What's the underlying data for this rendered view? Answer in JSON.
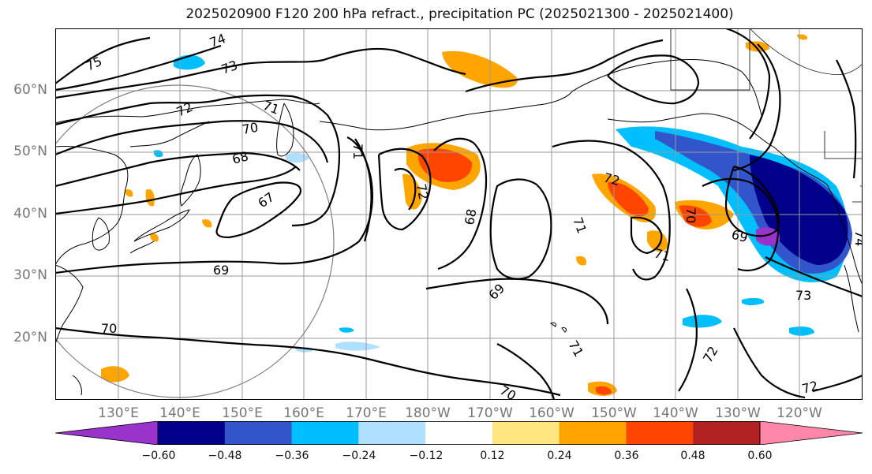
{
  "title": "2025020900 F120 200 hPa refract., precipitation PC (2025021300 - 2025021400)",
  "lat_labels": [
    "60°N",
    "50°N",
    "40°N",
    "30°N",
    "20°N"
  ],
  "lon_labels": [
    "130°E",
    "140°E",
    "150°E",
    "160°E",
    "170°E",
    "180°W",
    "170°W",
    "160°W",
    "150°W",
    "140°W",
    "130°W",
    "120°W"
  ],
  "contour_labels": [
    "75",
    "74",
    "73",
    "72",
    "71",
    "70",
    "68",
    "67",
    "71",
    "72",
    "68",
    "69",
    "72",
    "71",
    "71",
    "70",
    "69",
    "73",
    "74",
    "69",
    "70",
    "72",
    "72",
    "70",
    "71"
  ],
  "colorbar": {
    "ticks": [
      "−0.60",
      "−0.48",
      "−0.36",
      "−0.24",
      "−0.12",
      "0.12",
      "0.24",
      "0.36",
      "0.48",
      "0.60"
    ],
    "colors": [
      "#9933cc",
      "#00008b",
      "#3355cc",
      "#00bfff",
      "#b0e0ff",
      "#ffffff",
      "#ffe680",
      "#ffa500",
      "#ff4500",
      "#b22222",
      "#ff88aa"
    ]
  }
}
